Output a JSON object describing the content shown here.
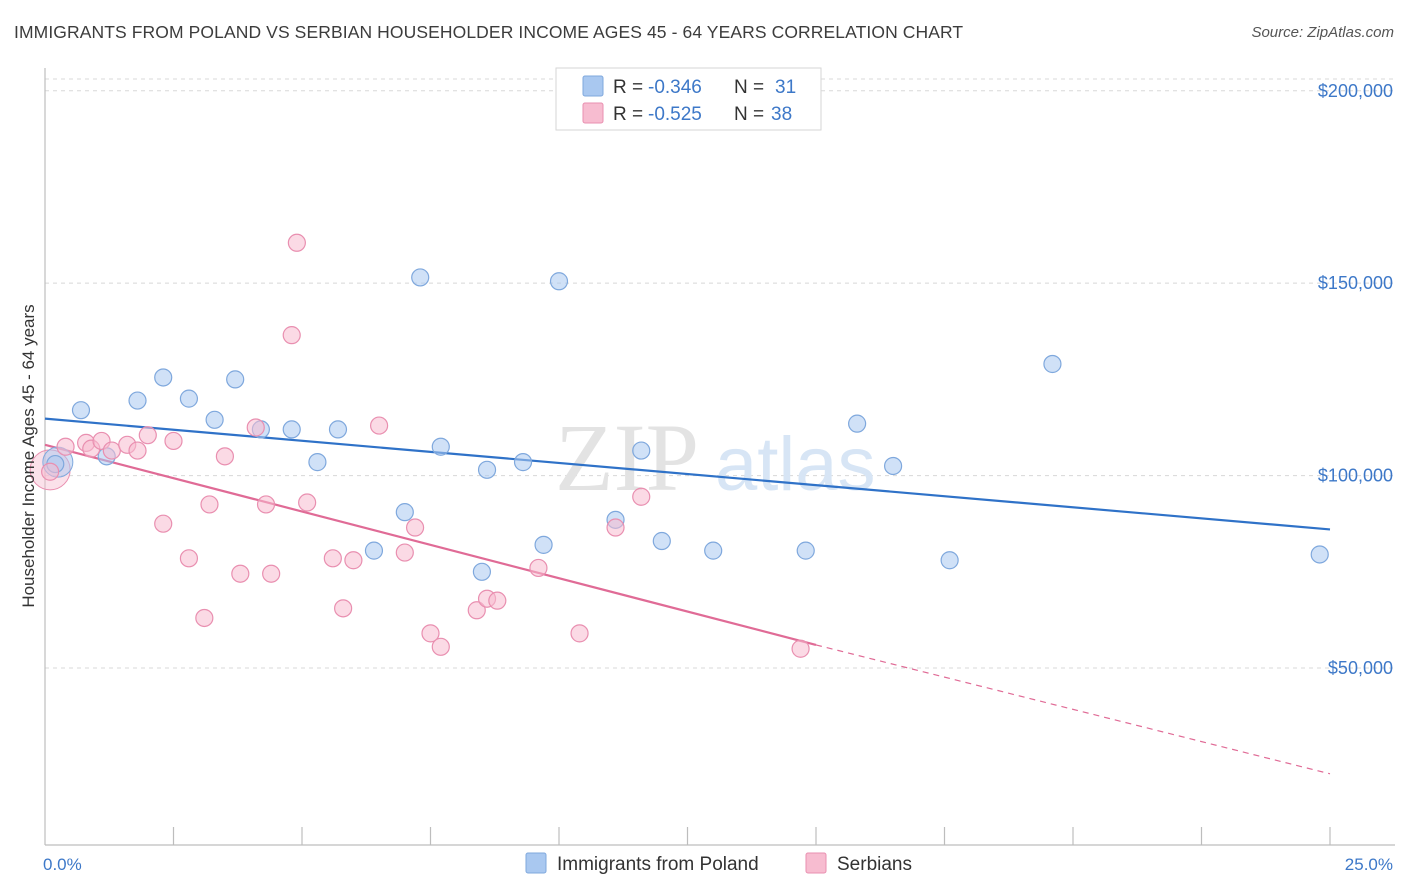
{
  "title": "IMMIGRANTS FROM POLAND VS SERBIAN HOUSEHOLDER INCOME AGES 45 - 64 YEARS CORRELATION CHART",
  "source": "Source: ZipAtlas.com",
  "watermark": {
    "zip": "ZIP",
    "atlas": "atlas"
  },
  "colors": {
    "poland": "#a9c8f0",
    "poland_stroke": "#7fa8dd",
    "poland_line": "#2f72c8",
    "serbian": "#f7bcd0",
    "serbian_stroke": "#e98fb0",
    "serbian_line": "#e06b96",
    "axis_text": "#3d78c8",
    "grid": "#d8d8d8"
  },
  "legend": {
    "rows": [
      {
        "r_label": "R = ",
        "r_value": "-0.346",
        "n_label": "N = ",
        "n_value": "31"
      },
      {
        "r_label": "R = ",
        "r_value": "-0.525",
        "n_label": "N = ",
        "n_value": "38"
      }
    ]
  },
  "chart_data": {
    "type": "scatter",
    "title": "IMMIGRANTS FROM POLAND VS SERBIAN HOUSEHOLDER INCOME AGES 45 - 64 YEARS CORRELATION CHART",
    "xlabel": "",
    "ylabel": "Householder Income Ages 45 - 64 years",
    "xlim": [
      0,
      25
    ],
    "ylim": [
      4000,
      208000
    ],
    "x_tick_labels": [
      "0.0%",
      "25.0%"
    ],
    "y_ticks": [
      50000,
      100000,
      150000,
      200000
    ],
    "y_tick_labels": [
      "$50,000",
      "$100,000",
      "$150,000",
      "$200,000"
    ],
    "grid": true,
    "legend_position": "top-center",
    "series": [
      {
        "name": "Immigrants from Poland",
        "points": [
          [
            0.2,
            103000
          ],
          [
            0.7,
            117000
          ],
          [
            1.2,
            105000
          ],
          [
            1.8,
            119500
          ],
          [
            2.3,
            125500
          ],
          [
            2.8,
            120000
          ],
          [
            3.3,
            114500
          ],
          [
            3.7,
            125000
          ],
          [
            4.2,
            112000
          ],
          [
            4.8,
            112000
          ],
          [
            5.3,
            103500
          ],
          [
            5.7,
            112000
          ],
          [
            6.4,
            80500
          ],
          [
            7.0,
            90500
          ],
          [
            7.3,
            151500
          ],
          [
            7.7,
            107500
          ],
          [
            8.5,
            75000
          ],
          [
            8.6,
            101500
          ],
          [
            9.3,
            103500
          ],
          [
            9.7,
            82000
          ],
          [
            10.0,
            150500
          ],
          [
            11.1,
            88500
          ],
          [
            11.6,
            106500
          ],
          [
            12.0,
            83000
          ],
          [
            13.0,
            80500
          ],
          [
            14.8,
            80500
          ],
          [
            15.8,
            113500
          ],
          [
            16.5,
            102500
          ],
          [
            17.6,
            78000
          ],
          [
            19.6,
            129000
          ],
          [
            24.8,
            79500
          ]
        ],
        "trend": {
          "x0": 0,
          "y0": 114800,
          "x1": 25,
          "y1": 86000
        }
      },
      {
        "name": "Serbians",
        "points": [
          [
            0.1,
            101000
          ],
          [
            0.4,
            107500
          ],
          [
            0.8,
            108500
          ],
          [
            0.9,
            107000
          ],
          [
            1.1,
            109000
          ],
          [
            1.3,
            106500
          ],
          [
            1.6,
            108000
          ],
          [
            1.8,
            106500
          ],
          [
            2.0,
            110500
          ],
          [
            2.3,
            87500
          ],
          [
            2.5,
            109000
          ],
          [
            2.8,
            78500
          ],
          [
            3.1,
            63000
          ],
          [
            3.2,
            92500
          ],
          [
            3.5,
            105000
          ],
          [
            3.8,
            74500
          ],
          [
            4.1,
            112500
          ],
          [
            4.3,
            92500
          ],
          [
            4.4,
            74500
          ],
          [
            4.8,
            136500
          ],
          [
            4.9,
            160500
          ],
          [
            5.1,
            93000
          ],
          [
            5.6,
            78500
          ],
          [
            5.8,
            65500
          ],
          [
            6.0,
            78000
          ],
          [
            6.5,
            113000
          ],
          [
            7.0,
            80000
          ],
          [
            7.2,
            86500
          ],
          [
            7.5,
            59000
          ],
          [
            7.7,
            55500
          ],
          [
            8.4,
            65000
          ],
          [
            8.6,
            68000
          ],
          [
            8.8,
            67500
          ],
          [
            9.6,
            76000
          ],
          [
            10.4,
            59000
          ],
          [
            11.1,
            86500
          ],
          [
            11.6,
            94500
          ],
          [
            14.7,
            55000
          ]
        ],
        "trend": {
          "x0": 0,
          "y0": 108000,
          "x1": 15,
          "y1": 56000
        },
        "trend_dashed": {
          "x0": 15,
          "y0": 56000,
          "x1": 25,
          "y1": 22500
        }
      }
    ]
  }
}
